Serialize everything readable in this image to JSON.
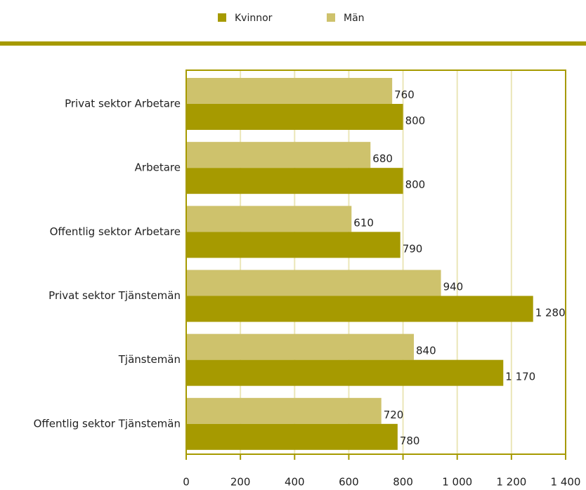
{
  "chart_data": {
    "type": "hbar",
    "categories": [
      "Privat sektor Arbetare",
      "Arbetare",
      "Offentlig sektor Arbetare",
      "Privat sektor Tjänstemän",
      "Tjänstemän",
      "Offentlig sektor Tjänstemän"
    ],
    "series": [
      {
        "name": "Kvinnor",
        "color": "#a69a00",
        "values": [
          800,
          800,
          790,
          1280,
          1170,
          780
        ],
        "value_labels": [
          "800",
          "800",
          "790",
          "1 280",
          "1 170",
          "780"
        ]
      },
      {
        "name": "Män",
        "color": "#cec26c",
        "values": [
          760,
          680,
          610,
          940,
          840,
          720
        ]
      }
    ],
    "xlim": [
      0,
      1400
    ],
    "xticks": [
      0,
      200,
      400,
      600,
      800,
      {
        "value": 1000,
        "label": "1 000"
      },
      {
        "value": 1200,
        "label": "1 200"
      },
      {
        "value": 1400,
        "label": "1 400"
      }
    ],
    "grid": true,
    "legend": "top"
  }
}
